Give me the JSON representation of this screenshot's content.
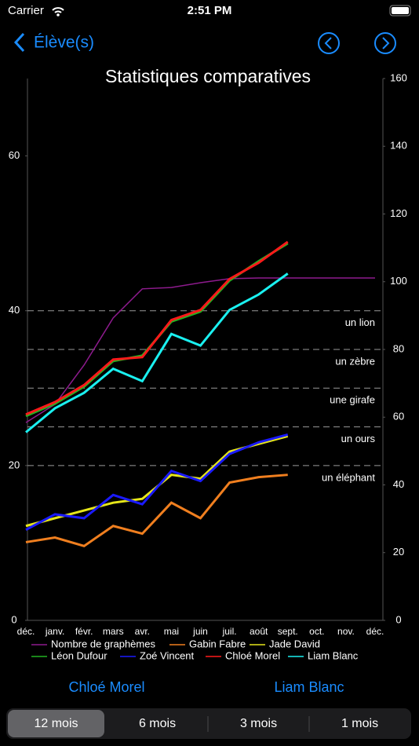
{
  "status_bar": {
    "carrier": "Carrier",
    "time": "2:51 PM"
  },
  "nav": {
    "back": "Élève(s)"
  },
  "chart_data": {
    "type": "line",
    "title": "Statistiques comparatives",
    "categories": [
      "déc.",
      "janv.",
      "févr.",
      "mars",
      "avr.",
      "mai",
      "juin",
      "juil.",
      "août",
      "sept.",
      "oct.",
      "nov.",
      "déc."
    ],
    "ylim": [
      0,
      70
    ],
    "yticks": [
      0,
      20,
      40,
      60
    ],
    "y2lim": [
      0,
      160
    ],
    "y2ticks": [
      0,
      20,
      40,
      60,
      80,
      100,
      120,
      140,
      160
    ],
    "reference_lines": [
      {
        "value": 40,
        "label": "un lion"
      },
      {
        "value": 35,
        "label": "un zèbre"
      },
      {
        "value": 30,
        "label": "une girafe"
      },
      {
        "value": 25,
        "label": "un ours"
      },
      {
        "value": 20,
        "label": "un éléphant"
      }
    ],
    "series": [
      {
        "name": "Nombre de graphèmes",
        "color": "#8e1b8e",
        "axis": "y2",
        "values": [
          58.4,
          63.8,
          75.4,
          89.3,
          97.9,
          98.3,
          99.7,
          100.9,
          101.1,
          101.1,
          101.1,
          101.1,
          101.1
        ]
      },
      {
        "name": "Gabin Fabre",
        "color": "#f07f1f",
        "values": [
          10.1,
          10.7,
          9.6,
          12.2,
          11.2,
          15.2,
          13.2,
          17.8,
          18.5,
          18.8,
          null,
          null,
          null
        ]
      },
      {
        "name": "Jade David",
        "color": "#e6e61a",
        "values": [
          12.2,
          13.2,
          14.2,
          15.2,
          15.7,
          18.8,
          18.3,
          21.8,
          22.8,
          23.8,
          null,
          null,
          null
        ]
      },
      {
        "name": "Léon Dufour",
        "color": "#22b322",
        "values": [
          26.4,
          28.0,
          30.2,
          33.5,
          34.2,
          38.6,
          39.9,
          43.9,
          46.4,
          48.7,
          null,
          null,
          null
        ]
      },
      {
        "name": "Zoé Vincent",
        "color": "#1a1aff",
        "values": [
          11.7,
          13.7,
          13.2,
          16.2,
          15.0,
          19.3,
          18.0,
          21.5,
          23.0,
          24.0,
          null,
          null,
          null
        ]
      },
      {
        "name": "Chloé Morel",
        "color": "#ff1a1a",
        "values": [
          26.6,
          28.2,
          30.4,
          33.7,
          34.0,
          38.8,
          40.1,
          44.1,
          46.2,
          48.9,
          null,
          null,
          null
        ]
      },
      {
        "name": "Liam Blanc",
        "color": "#1af0f0",
        "values": [
          24.3,
          27.4,
          29.4,
          32.5,
          30.9,
          37.0,
          35.5,
          40.1,
          42.1,
          44.8,
          null,
          null,
          null
        ]
      }
    ]
  },
  "buttons": [
    "Chloé Morel",
    "Liam Blanc"
  ],
  "segments": {
    "options": [
      "12 mois",
      "6 mois",
      "3 mois",
      "1 mois"
    ],
    "selected": 0
  }
}
